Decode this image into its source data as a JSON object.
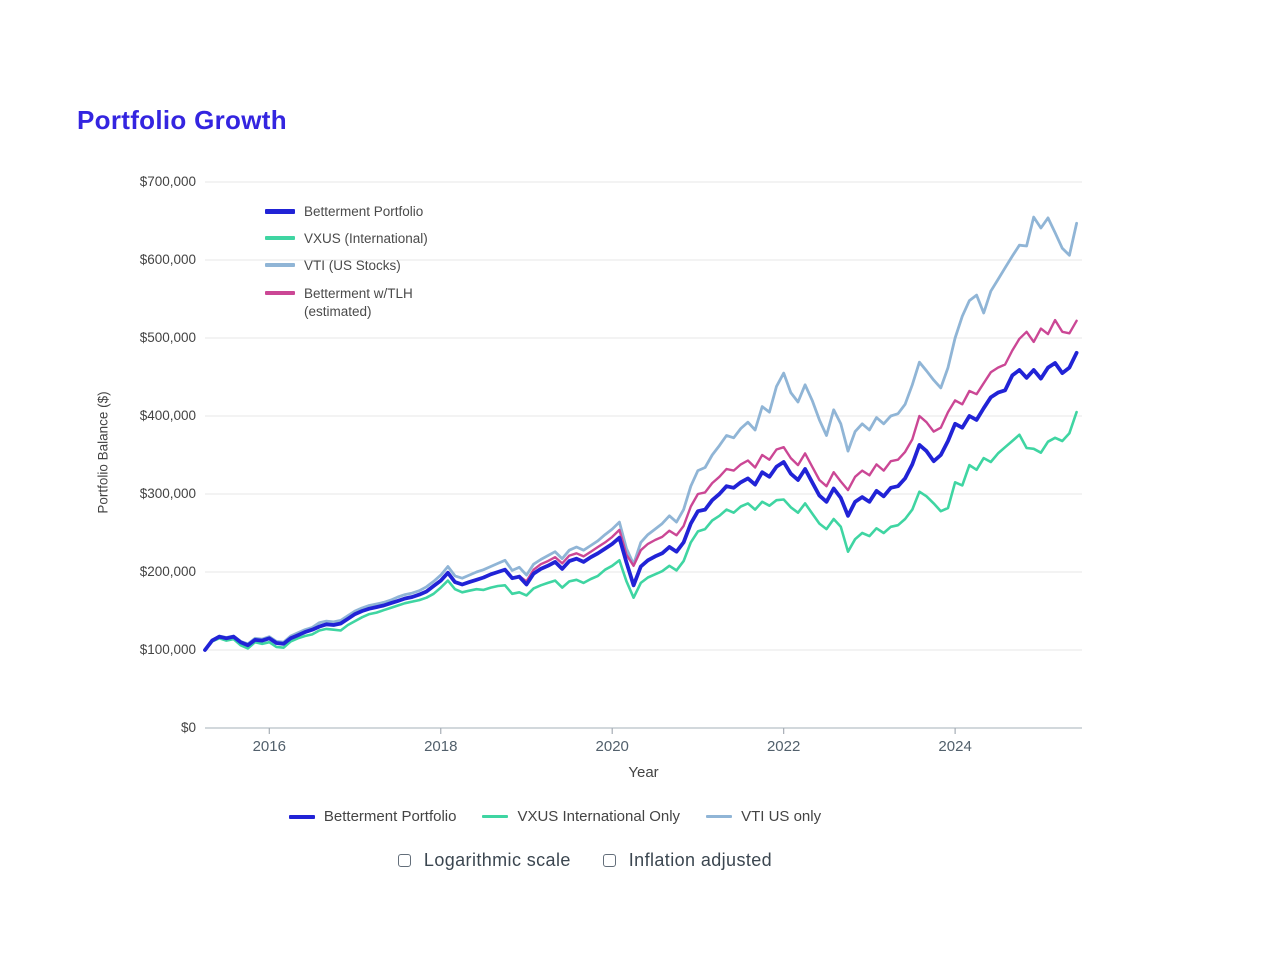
{
  "page": {
    "title": "Portfolio Growth",
    "accent_color": "#3425e0",
    "background_color": "#ffffff"
  },
  "chart_data": {
    "type": "line",
    "title": "Portfolio Growth",
    "xlabel": "Year",
    "ylabel": "Portfolio Balance ($)",
    "grid": "horizontal",
    "legend_position": "inside-top-left",
    "xlim": [
      2015.25,
      2025.48
    ],
    "ylim": [
      0,
      700000
    ],
    "x_tick_values": [
      2016,
      2018,
      2020,
      2022,
      2024
    ],
    "x_tick_labels": [
      "2016",
      "2018",
      "2020",
      "2022",
      "2024"
    ],
    "y_tick_values": [
      0,
      100000,
      200000,
      300000,
      400000,
      500000,
      600000,
      700000
    ],
    "y_tick_labels": [
      "$0",
      "$100,000",
      "$200,000",
      "$300,000",
      "$400,000",
      "$500,000",
      "$600,000",
      "$700,000"
    ],
    "x_start": 2015.25,
    "x_step": 0.0833333,
    "units": "USD thousands",
    "series": [
      {
        "name": "Betterment Portfolio",
        "legend_label": "Betterment Portfolio",
        "color": "#2123d6",
        "width": 3.8,
        "z": 4,
        "values_k": [
          100,
          112,
          117,
          115,
          117,
          110,
          106,
          113,
          112,
          115,
          109,
          108,
          115,
          119,
          123,
          126,
          130,
          133,
          132,
          134,
          140,
          146,
          150,
          153,
          155,
          157,
          160,
          163,
          166,
          168,
          171,
          175,
          182,
          189,
          199,
          187,
          184,
          187,
          190,
          193,
          197,
          200,
          203,
          192,
          194,
          184,
          198,
          204,
          208,
          213,
          204,
          214,
          217,
          213,
          219,
          224,
          230,
          236,
          244,
          212,
          183,
          207,
          215,
          220,
          224,
          232,
          226,
          238,
          262,
          278,
          280,
          292,
          300,
          310,
          308,
          315,
          320,
          312,
          328,
          322,
          335,
          341,
          326,
          318,
          332,
          315,
          298,
          290,
          307,
          295,
          272,
          290,
          296,
          290,
          304,
          297,
          308,
          310,
          320,
          338,
          363,
          355,
          342,
          350,
          368,
          390,
          385,
          400,
          395,
          410,
          424,
          430,
          433,
          452,
          459,
          449,
          459,
          448,
          462,
          468,
          455,
          462,
          481
        ]
      },
      {
        "name": "VXUS (International)",
        "legend_label": "VXUS (International)",
        "color": "#3fd5a2",
        "width": 2.6,
        "z": 2,
        "values_k": [
          100,
          111,
          115,
          112,
          114,
          106,
          102,
          110,
          108,
          110,
          104,
          103,
          111,
          115,
          118,
          120,
          125,
          127,
          126,
          125,
          132,
          137,
          142,
          146,
          148,
          151,
          154,
          157,
          160,
          162,
          164,
          167,
          172,
          180,
          189,
          178,
          174,
          176,
          178,
          177,
          180,
          182,
          183,
          172,
          174,
          170,
          179,
          183,
          186,
          189,
          180,
          188,
          190,
          186,
          191,
          195,
          203,
          208,
          215,
          188,
          167,
          186,
          193,
          197,
          201,
          208,
          202,
          214,
          238,
          252,
          255,
          266,
          272,
          280,
          276,
          284,
          288,
          280,
          290,
          285,
          292,
          293,
          283,
          276,
          288,
          275,
          262,
          255,
          268,
          258,
          226,
          242,
          250,
          246,
          256,
          250,
          258,
          260,
          268,
          280,
          303,
          297,
          288,
          278,
          282,
          315,
          311,
          337,
          331,
          346,
          341,
          352,
          360,
          368,
          376,
          359,
          358,
          353,
          367,
          372,
          368,
          378,
          405
        ]
      },
      {
        "name": "VTI (US Stocks)",
        "legend_label": "VTI (US Stocks)",
        "color": "#90b5d6",
        "width": 2.8,
        "z": 1,
        "values_k": [
          100,
          112,
          118,
          116,
          118,
          111,
          108,
          115,
          114,
          117,
          111,
          110,
          118,
          122,
          126,
          129,
          135,
          137,
          136,
          138,
          144,
          150,
          154,
          157,
          159,
          161,
          164,
          168,
          171,
          173,
          176,
          181,
          188,
          196,
          207,
          195,
          192,
          196,
          200,
          203,
          207,
          211,
          215,
          202,
          206,
          196,
          210,
          216,
          221,
          226,
          217,
          228,
          232,
          228,
          234,
          240,
          248,
          255,
          264,
          230,
          210,
          238,
          248,
          255,
          262,
          272,
          264,
          280,
          310,
          330,
          334,
          350,
          362,
          375,
          372,
          384,
          392,
          382,
          412,
          405,
          438,
          455,
          430,
          418,
          440,
          420,
          395,
          375,
          408,
          390,
          355,
          380,
          390,
          382,
          398,
          390,
          400,
          403,
          415,
          440,
          469,
          458,
          446,
          436,
          462,
          500,
          528,
          548,
          555,
          532,
          560,
          575,
          590,
          605,
          619,
          618,
          655,
          641,
          654,
          635,
          615,
          606,
          647
        ]
      },
      {
        "name": "Betterment w/TLH (estimated)",
        "legend_label": "Betterment w/TLH\n(estimated)",
        "color": "#cb4795",
        "width": 2.4,
        "z": 3,
        "values_k": [
          100,
          112,
          117,
          115,
          117,
          110,
          106,
          113,
          112,
          115,
          109,
          108,
          115,
          119,
          123,
          126,
          130,
          133,
          132,
          134,
          140,
          146,
          150,
          153,
          155,
          157,
          160,
          163,
          166,
          168,
          171,
          175,
          182,
          189,
          199,
          187,
          184,
          187,
          190,
          193,
          197,
          200,
          203,
          192,
          195,
          188,
          203,
          210,
          214,
          219,
          211,
          221,
          224,
          220,
          226,
          232,
          238,
          245,
          254,
          222,
          208,
          228,
          236,
          241,
          245,
          253,
          247,
          259,
          284,
          300,
          302,
          314,
          322,
          332,
          330,
          338,
          343,
          334,
          350,
          344,
          357,
          360,
          346,
          337,
          352,
          335,
          318,
          310,
          328,
          316,
          305,
          322,
          330,
          324,
          338,
          330,
          342,
          344,
          354,
          370,
          400,
          392,
          380,
          385,
          405,
          420,
          415,
          432,
          428,
          442,
          456,
          462,
          466,
          484,
          499,
          508,
          495,
          512,
          505,
          523,
          508,
          506,
          522
        ]
      }
    ],
    "style": {
      "gridline_color": "#e7e7e7",
      "axis_line_color": "#b8c0c8",
      "tick_color": "#a6adb5"
    }
  },
  "bottom_legend": [
    {
      "label": "Betterment Portfolio",
      "color": "#2123d6"
    },
    {
      "label": "VXUS International Only",
      "color": "#3fd5a2"
    },
    {
      "label": "VTI US only",
      "color": "#90b5d6"
    }
  ],
  "controls": {
    "logarithmic": {
      "label": "Logarithmic scale",
      "checked": false
    },
    "inflation": {
      "label": "Inflation adjusted",
      "checked": false
    }
  }
}
